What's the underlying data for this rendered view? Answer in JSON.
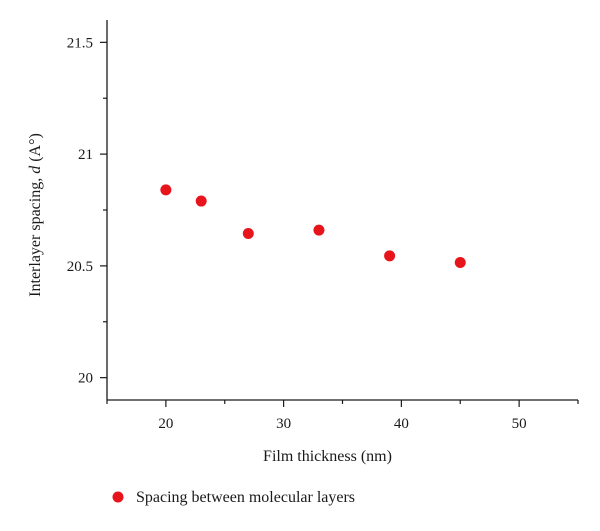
{
  "chart_data": {
    "type": "scatter",
    "title": "",
    "xlabel": "Film thickness (nm)",
    "ylabel": "Interlayer spacing, d (A°)",
    "ylabel_parts": {
      "prefix": "Interlayer spacing, ",
      "var": "d",
      "unit": " (A°)"
    },
    "xlim": [
      15,
      55
    ],
    "ylim": [
      19.9,
      21.6
    ],
    "x_ticks": [
      20,
      30,
      40,
      50
    ],
    "x_tick_labels": [
      "20",
      "30",
      "40",
      "50"
    ],
    "y_ticks": [
      20,
      20.5,
      21,
      21.5
    ],
    "y_tick_labels": [
      "20",
      "20.5",
      "21",
      "21.5"
    ],
    "grid": false,
    "legend_position": "bottom",
    "series": [
      {
        "name": "Spacing between molecular layers",
        "color": "#e8141c",
        "marker": "circle",
        "x": [
          20,
          23,
          27,
          33,
          39,
          45
        ],
        "y": [
          20.84,
          20.79,
          20.645,
          20.66,
          20.545,
          20.515
        ]
      }
    ]
  }
}
